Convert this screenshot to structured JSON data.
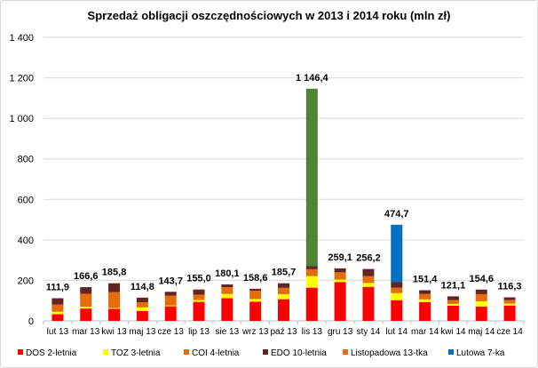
{
  "chart_data": {
    "type": "bar",
    "stacked": true,
    "title": "Sprzedaż obligacji oszczędnościowych  w 2013 i 2014 roku (mln zł)",
    "xlabel": "",
    "ylabel": "",
    "ylim": [
      0,
      1400
    ],
    "yticks": [
      "0",
      "200",
      "400",
      "600",
      "800",
      "1 000",
      "1 200",
      "1 400"
    ],
    "ytick_values": [
      0,
      200,
      400,
      600,
      800,
      1000,
      1200,
      1400
    ],
    "grid": true,
    "legend_position": "bottom",
    "categories": [
      "lut 13",
      "mar 13",
      "kwi 13",
      "maj 13",
      "cze 13",
      "lip 13",
      "sie 13",
      "wrz 13",
      "paź 13",
      "lis 13",
      "gru 13",
      "sty 14",
      "lut 14",
      "mar 14",
      "kwi 14",
      "maj 14",
      "cze 14"
    ],
    "totals": [
      "111,9",
      "166,6",
      "185,8",
      "114,8",
      "143,7",
      "155,0",
      "180,1",
      "158,6",
      "185,7",
      "1 146,4",
      "259,1",
      "256,2",
      "474,7",
      "151,4",
      "121,1",
      "154,6",
      "116,3"
    ],
    "series": [
      {
        "name": "DOS 2-letnia",
        "color": "#FF0000",
        "bar_color": "#FF0000",
        "values": [
          33,
          61,
          60,
          49,
          72,
          94,
          112,
          95,
          107,
          164,
          192,
          168,
          102,
          93,
          75,
          71,
          76
        ]
      },
      {
        "name": "TOZ 3-letnia",
        "color": "#FFFF00",
        "bar_color": "#FFFF00",
        "values": [
          12,
          9,
          4,
          18,
          4,
          9,
          21,
          13,
          25,
          57,
          12,
          19,
          35,
          13,
          9,
          26,
          9
        ]
      },
      {
        "name": "COI 4-letnia",
        "color": "#E46C0A",
        "bar_color": "#E46C0A",
        "values": [
          36,
          64,
          78,
          25,
          49,
          26,
          33,
          41,
          31,
          34,
          36,
          34,
          27,
          27,
          19,
          35,
          18
        ]
      },
      {
        "name": "EDO 10-letnia",
        "color": "#632523",
        "bar_color": "#632523",
        "values": [
          30.9,
          32.6,
          43.8,
          22.8,
          18.7,
          26,
          14.1,
          9.6,
          22.7,
          15,
          19.1,
          35.2,
          27,
          18.4,
          18.1,
          22.6,
          13.3
        ]
      },
      {
        "name": "Listopadowa 13-tka",
        "color": "#E46C0A",
        "bar_color": "#548235",
        "values": [
          0,
          0,
          0,
          0,
          0,
          0,
          0,
          0,
          0,
          876.4,
          0,
          0,
          0,
          0,
          0,
          0,
          0
        ]
      },
      {
        "name": "Lutowa 7-ka",
        "color": "#0070C0",
        "bar_color": "#0070C0",
        "values": [
          0,
          0,
          0,
          0,
          0,
          0,
          0,
          0,
          0,
          0,
          0,
          0,
          283.7,
          0,
          0,
          0,
          0
        ]
      }
    ]
  }
}
